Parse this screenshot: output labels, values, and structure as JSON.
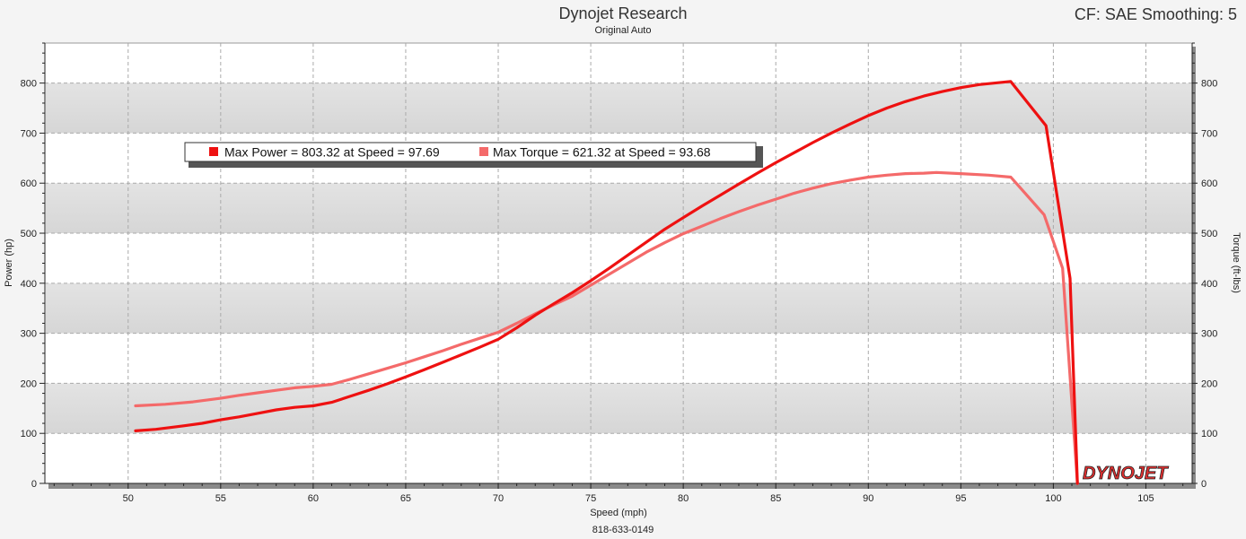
{
  "header": {
    "title": "Dynojet Research",
    "subtitle": "Original Auto",
    "settings": "CF: SAE Smoothing: 5"
  },
  "footer": {
    "phone": "818-633-0149"
  },
  "logo": {
    "text": "DYNOJET",
    "color": "#e03030"
  },
  "chart_data": {
    "type": "line",
    "xlabel": "Speed (mph)",
    "ylabel": "Power (hp)",
    "y2label": "Torque (ft-lbs)",
    "xlim": [
      45.5,
      107.5
    ],
    "ylim": [
      0,
      880
    ],
    "y2lim": [
      0,
      880
    ],
    "x_ticks": [
      50,
      55,
      60,
      65,
      70,
      75,
      80,
      85,
      90,
      95,
      100,
      105
    ],
    "y_ticks": [
      0,
      100,
      200,
      300,
      400,
      500,
      600,
      700,
      800
    ],
    "grid": true,
    "legend_position": "top-left",
    "legend": [
      {
        "label": "Max Power = 803.32 at Speed = 97.69",
        "color": "#ee1111"
      },
      {
        "label": "Max Torque = 621.32 at Speed = 93.68",
        "color": "#f46a6a"
      }
    ],
    "series": [
      {
        "name": "Power",
        "color": "#ee1111",
        "axis": "left",
        "points": [
          [
            50.4,
            105
          ],
          [
            51.5,
            108
          ],
          [
            53,
            115
          ],
          [
            54,
            120
          ],
          [
            55,
            127
          ],
          [
            56,
            133
          ],
          [
            57,
            140
          ],
          [
            58,
            147
          ],
          [
            59,
            152
          ],
          [
            60,
            155
          ],
          [
            61,
            162
          ],
          [
            62,
            174
          ],
          [
            63,
            186
          ],
          [
            64,
            199
          ],
          [
            65,
            213
          ],
          [
            66,
            227
          ],
          [
            67,
            242
          ],
          [
            68,
            257
          ],
          [
            69,
            272
          ],
          [
            70,
            288
          ],
          [
            71,
            311
          ],
          [
            72,
            336
          ],
          [
            73,
            359
          ],
          [
            74,
            381
          ],
          [
            75,
            405
          ],
          [
            76,
            430
          ],
          [
            77,
            456
          ],
          [
            78,
            482
          ],
          [
            79,
            508
          ],
          [
            80,
            531
          ],
          [
            81,
            554
          ],
          [
            82,
            576
          ],
          [
            83,
            598
          ],
          [
            84,
            620
          ],
          [
            85,
            641
          ],
          [
            86,
            661
          ],
          [
            87,
            681
          ],
          [
            88,
            700
          ],
          [
            89,
            718
          ],
          [
            90,
            735
          ],
          [
            91,
            750
          ],
          [
            92,
            763
          ],
          [
            93,
            774
          ],
          [
            94,
            783
          ],
          [
            95,
            791
          ],
          [
            96,
            797
          ],
          [
            97.69,
            803.32
          ],
          [
            99.6,
            715
          ],
          [
            100.9,
            410
          ],
          [
            101.3,
            0
          ]
        ]
      },
      {
        "name": "Torque",
        "color": "#f46a6a",
        "axis": "right",
        "points": [
          [
            50.4,
            155
          ],
          [
            52,
            158
          ],
          [
            53.5,
            163
          ],
          [
            55,
            170
          ],
          [
            56,
            176
          ],
          [
            57,
            181
          ],
          [
            58,
            186
          ],
          [
            59,
            191
          ],
          [
            60,
            194
          ],
          [
            61,
            198
          ],
          [
            62,
            208
          ],
          [
            63,
            219
          ],
          [
            64,
            230
          ],
          [
            65,
            241
          ],
          [
            66,
            253
          ],
          [
            67,
            265
          ],
          [
            68,
            278
          ],
          [
            69,
            290
          ],
          [
            70,
            302
          ],
          [
            71,
            320
          ],
          [
            72,
            339
          ],
          [
            73,
            357
          ],
          [
            74,
            374
          ],
          [
            75,
            396
          ],
          [
            76,
            418
          ],
          [
            77,
            440
          ],
          [
            78,
            462
          ],
          [
            79,
            481
          ],
          [
            80,
            499
          ],
          [
            81,
            514
          ],
          [
            82,
            529
          ],
          [
            83,
            543
          ],
          [
            84,
            556
          ],
          [
            85,
            568
          ],
          [
            86,
            580
          ],
          [
            87,
            590
          ],
          [
            88,
            599
          ],
          [
            89,
            606
          ],
          [
            90,
            612
          ],
          [
            91,
            616
          ],
          [
            92,
            619
          ],
          [
            93,
            620
          ],
          [
            93.68,
            621.32
          ],
          [
            95,
            619
          ],
          [
            96.5,
            616
          ],
          [
            97.7,
            612
          ],
          [
            99.5,
            537
          ],
          [
            100.5,
            430
          ],
          [
            101.3,
            0
          ]
        ]
      }
    ]
  }
}
